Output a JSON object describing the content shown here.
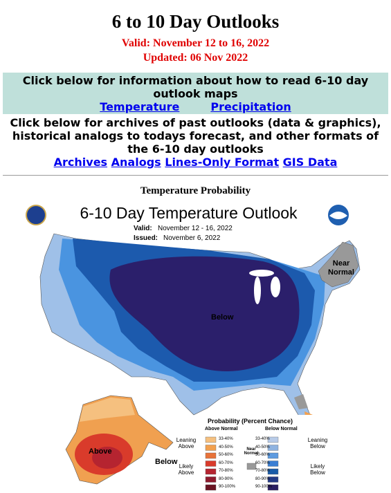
{
  "header": {
    "title": "6 to 10 Day Outlooks",
    "valid": "Valid: November 12 to 16, 2022",
    "updated": "Updated: 06 Nov 2022"
  },
  "info": {
    "text": "Click below for information about how to read 6-10 day outlook maps",
    "links": [
      "Temperature",
      "Precipitation"
    ]
  },
  "archives": {
    "text": "Click below for archives of past outlooks (data & graphics), historical analogs to todays forecast, and other formats of the 6-10 day outlooks",
    "links": [
      "Archives",
      "Analogs",
      "Lines-Only Format",
      "GIS Data"
    ]
  },
  "section_title": "Temperature Probability",
  "map": {
    "title": "6-10 Day Temperature Outlook",
    "valid_label": "Valid:",
    "valid": "November 12 - 16, 2022",
    "issued_label": "Issued:",
    "issued": "November 6, 2022",
    "region_labels": {
      "near_normal": "Near Normal",
      "below_conus": "Below",
      "above_alaska": "Above",
      "below_alaska": "Below"
    },
    "legend": {
      "title": "Probability (Percent Chance)",
      "above_header": "Above Normal",
      "below_header": "Below Normal",
      "near": "Near Normal",
      "near_color": "#999999",
      "above_groups": [
        "Leaning Above",
        "Likely Above"
      ],
      "below_groups": [
        "Leaning Below",
        "Likely Below"
      ],
      "ranges": [
        "33-40%",
        "40-50%",
        "50-60%",
        "60-70%",
        "70-80%",
        "80-90%",
        "90-100%"
      ],
      "above_colors": [
        "#f5c07f",
        "#f2a04e",
        "#e8733a",
        "#d93b2b",
        "#b52430",
        "#8e1a2d",
        "#6a1322"
      ],
      "below_colors": [
        "#b8cbe8",
        "#8fb3e0",
        "#5d9be0",
        "#3a7fd4",
        "#1a5ca8",
        "#243a85",
        "#2a1f62"
      ]
    }
  }
}
